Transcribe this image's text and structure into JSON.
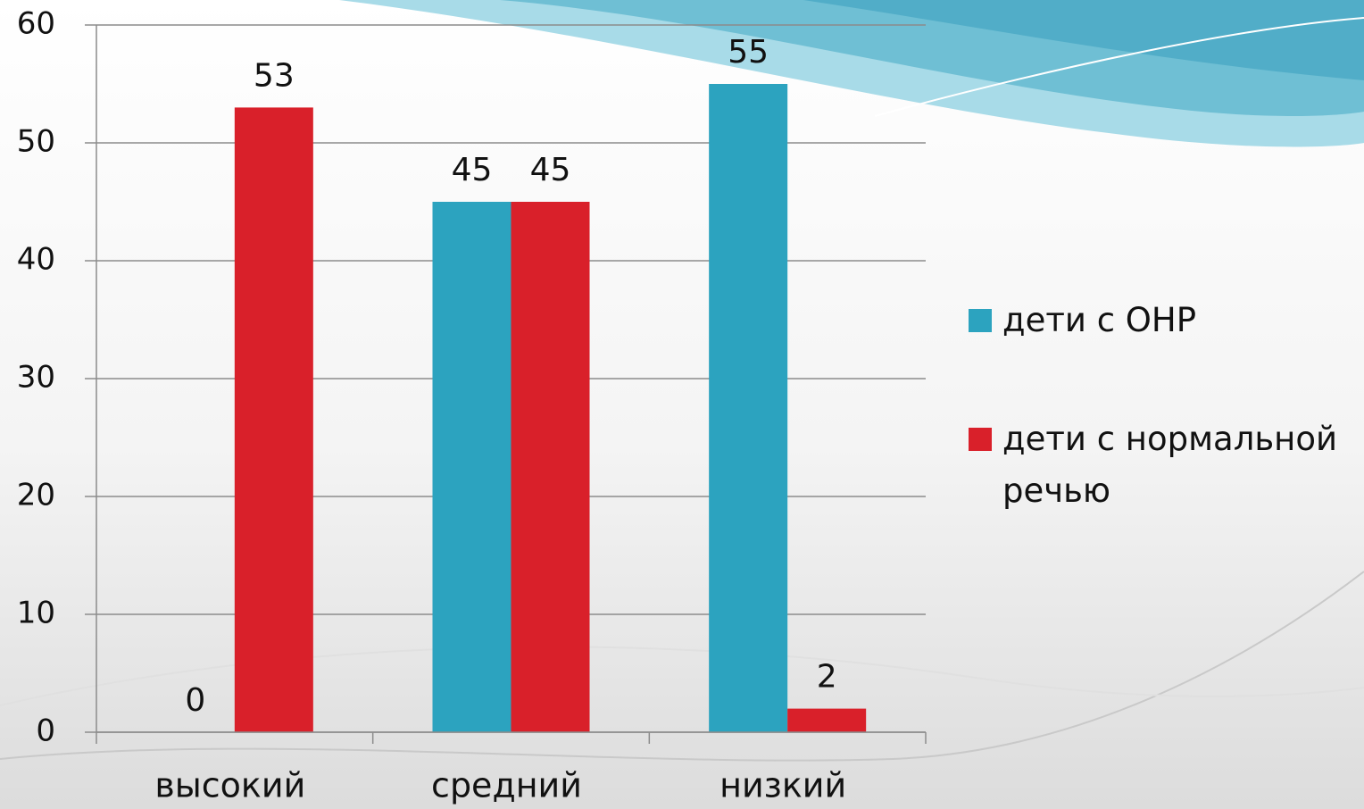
{
  "chart_data": {
    "type": "bar",
    "categories": [
      "высокий",
      "средний",
      "низкий"
    ],
    "series": [
      {
        "name": "дети с ОНР",
        "color": "#2ca3bf",
        "values": [
          0,
          45,
          55
        ]
      },
      {
        "name": "дети с нормальной речью",
        "color": "#d9202a",
        "values": [
          53,
          45,
          2
        ]
      }
    ],
    "ylim": [
      0,
      60
    ],
    "yticks": [
      0,
      10,
      20,
      30,
      40,
      50,
      60
    ],
    "grid": true,
    "legend": "right"
  }
}
